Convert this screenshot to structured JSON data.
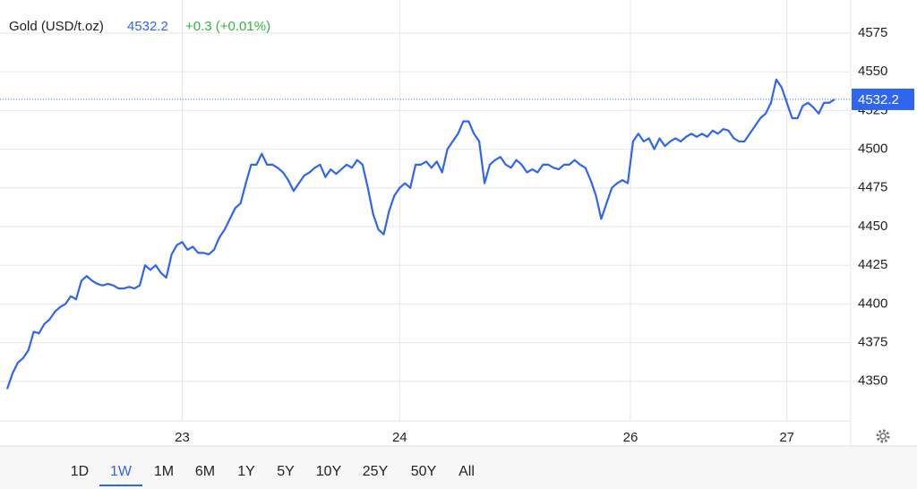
{
  "header": {
    "title": "Gold (USD/t.oz)",
    "change": "+0.3 (+0.01%)"
  },
  "chart_data": {
    "type": "line",
    "series": [
      {
        "color": "#2f66f0",
        "values": [
          4345,
          4355,
          4362,
          4365,
          4370,
          4382,
          4381,
          4387,
          4390,
          4395,
          4398,
          4400,
          4405,
          4403,
          4415,
          4418,
          4415,
          4413,
          4412,
          4413,
          4412,
          4410,
          4410,
          4411,
          4410,
          4412,
          4425,
          4422,
          4425,
          4420,
          4417,
          4432,
          4438,
          4440,
          4435,
          4437,
          4433,
          4433,
          4432,
          4435,
          4443,
          4448,
          4455,
          4462,
          4465,
          4478,
          4490,
          4490,
          4497,
          4490,
          4490,
          4488,
          4485,
          4480,
          4473,
          4478,
          4483,
          4485,
          4488,
          4490,
          4482,
          4487,
          4484,
          4487,
          4490,
          4488,
          4493,
          4490,
          4475,
          4458,
          4448,
          4445,
          4460,
          4470,
          4475,
          4478,
          4475,
          4490,
          4490,
          4492,
          4488,
          4492,
          4485,
          4500,
          4505,
          4510,
          4518,
          4518,
          4510,
          4505,
          4478,
          4490,
          4493,
          4495,
          4490,
          4488,
          4493,
          4490,
          4485,
          4487,
          4485,
          4490,
          4490,
          4488,
          4487,
          4490,
          4490,
          4493,
          4490,
          4488,
          4480,
          4470,
          4455,
          4465,
          4475,
          4478,
          4480,
          4478,
          4505,
          4510,
          4505,
          4507,
          4500,
          4507,
          4502,
          4505,
          4507,
          4505,
          4508,
          4510,
          4508,
          4510,
          4508,
          4512,
          4510,
          4513,
          4512,
          4507,
          4505,
          4505,
          4510,
          4515,
          4520,
          4523,
          4530,
          4545,
          4540,
          4530,
          4520,
          4520,
          4528,
          4530,
          4527,
          4523,
          4530,
          4530,
          4532.2
        ]
      }
    ],
    "xlim": [
      0,
      156
    ],
    "xticks": [
      {
        "value": 33,
        "label": "23"
      },
      {
        "value": 74,
        "label": "24"
      },
      {
        "value": 117.5,
        "label": "26"
      },
      {
        "value": 147,
        "label": "27"
      }
    ],
    "ylim": [
      4324.4,
      4596.4
    ],
    "yticks": [
      4350,
      4375,
      4400,
      4425,
      4450,
      4475,
      4500,
      4525,
      4550,
      4575
    ],
    "grid": true
  },
  "ranges": [
    "1D",
    "1W",
    "1M",
    "6M",
    "1Y",
    "5Y",
    "10Y",
    "25Y",
    "50Y",
    "All"
  ],
  "selected_range": 1
}
